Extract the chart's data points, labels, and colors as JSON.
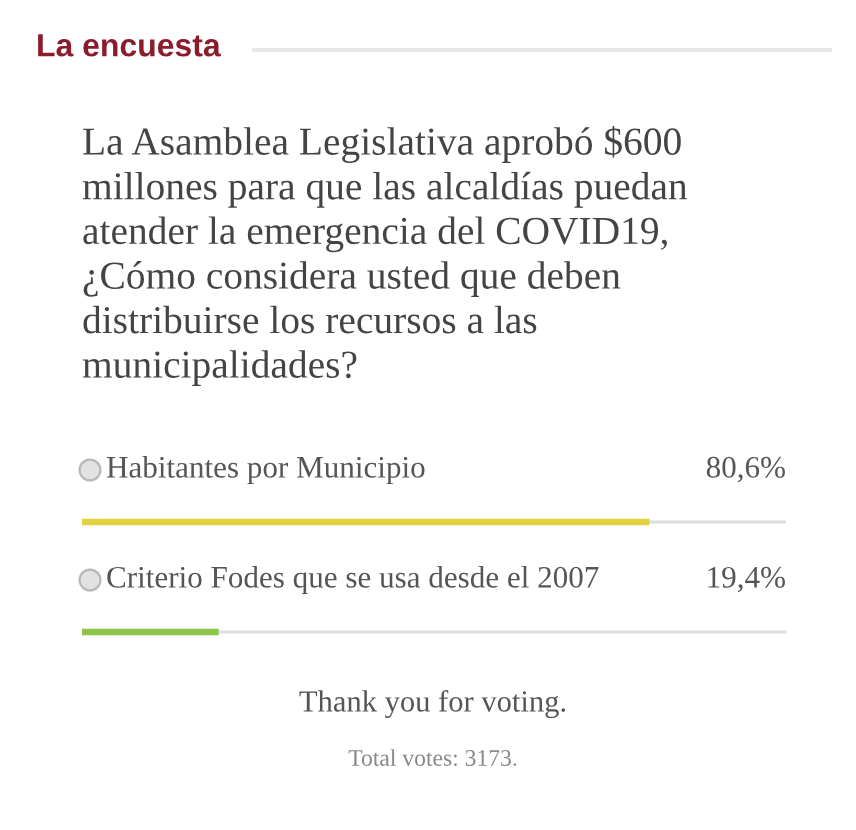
{
  "chart_data": {
    "type": "bar",
    "orientation": "horizontal",
    "title": "La encuesta",
    "subtitle": "La Asamblea Legislativa aprobó $600 millones para que las alcaldías puedan atender la emergencia del COVID19, ¿Cómo considera usted que deben distribuirse los recursos a las municipalidades?",
    "categories": [
      "Habitantes por Municipio",
      "Criterio Fodes que se usa desde el 2007"
    ],
    "values": [
      80.6,
      19.4
    ],
    "colors": [
      "#e1d33f",
      "#8bc34a"
    ],
    "value_labels": [
      "80,6%",
      "19,4%"
    ],
    "xlim": [
      0,
      100
    ],
    "tick_labels": false,
    "grid": "y",
    "annotations": [
      "Thank you for voting.",
      "Total votes: 3173."
    ]
  }
}
